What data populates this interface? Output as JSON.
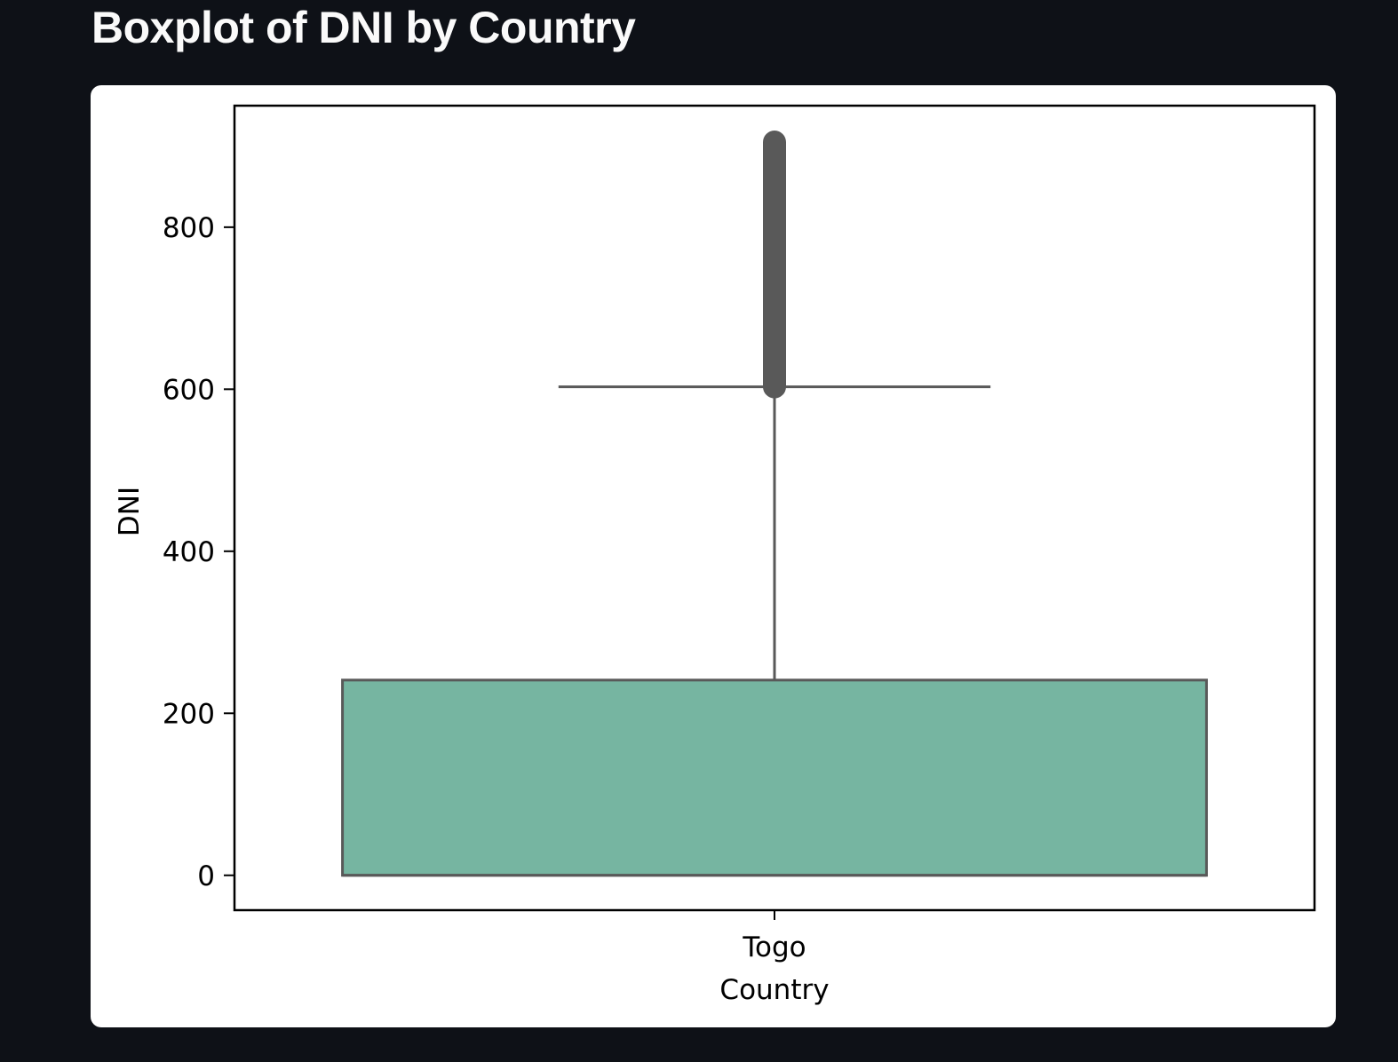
{
  "page": {
    "title": "Boxplot of DNI by Country"
  },
  "colors": {
    "background": "#0e1117",
    "box_fill": "#76b5a1",
    "box_edge": "#595959"
  },
  "chart_data": {
    "type": "boxplot",
    "title": "",
    "xlabel": "Country",
    "ylabel": "DNI",
    "categories": [
      "Togo"
    ],
    "boxes": [
      {
        "category": "Togo",
        "min": 0,
        "q1": 0,
        "median": 0,
        "q3": 241,
        "whisker_low": 0,
        "whisker_high": 603,
        "outliers_min": 603,
        "outliers_max": 905
      }
    ],
    "yticks": [
      0,
      200,
      400,
      600,
      800
    ],
    "ylim": [
      -43,
      950
    ],
    "grid": false,
    "legend": "none"
  }
}
